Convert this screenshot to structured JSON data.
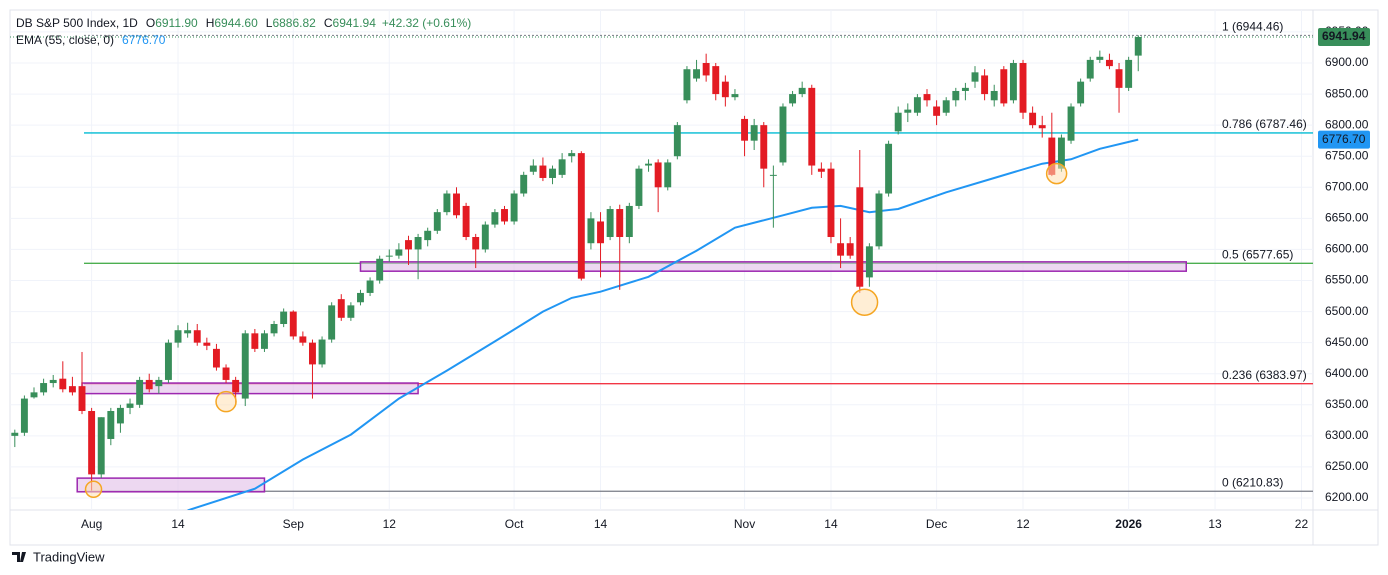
{
  "header": {
    "title": "DB S&P 500 Index, 1D",
    "ohlc": [
      {
        "label": "O",
        "value": "6911.90"
      },
      {
        "label": "H",
        "value": "6944.60"
      },
      {
        "label": "L",
        "value": "6886.82"
      },
      {
        "label": "C",
        "value": "6941.94"
      }
    ],
    "change": "+42.32 (+0.61%)",
    "close_label": "6941.94",
    "brand": "TradingView"
  },
  "chart_data": {
    "type": "candlestick",
    "up_color": "#388e5a",
    "down_color": "#e31b23",
    "xlim": [
      -0.5,
      135.2
    ],
    "ylim": [
      6180.7,
      6985.3
    ],
    "xticks": [
      {
        "value": 8,
        "label": "Aug"
      },
      {
        "value": 17,
        "label": "14"
      },
      {
        "value": 29,
        "label": "Sep"
      },
      {
        "value": 39,
        "label": "12"
      },
      {
        "value": 52,
        "label": "Oct"
      },
      {
        "value": 61,
        "label": "14"
      },
      {
        "value": 76,
        "label": "Nov"
      },
      {
        "value": 85,
        "label": "14"
      },
      {
        "value": 96,
        "label": "Dec"
      },
      {
        "value": 105,
        "label": "12"
      },
      {
        "value": 116,
        "label": "2026"
      },
      {
        "value": 125,
        "label": "13"
      },
      {
        "value": 134,
        "label": "22"
      }
    ],
    "yticks": [
      {
        "value": 6200,
        "label": "6200.00"
      },
      {
        "value": 6250,
        "label": "6250.00"
      },
      {
        "value": 6300,
        "label": "6300.00"
      },
      {
        "value": 6350,
        "label": "6350.00"
      },
      {
        "value": 6400,
        "label": "6400.00"
      },
      {
        "value": 6450,
        "label": "6450.00"
      },
      {
        "value": 6500,
        "label": "6500.00"
      },
      {
        "value": 6550,
        "label": "6550.00"
      },
      {
        "value": 6600,
        "label": "6600.00"
      },
      {
        "value": 6650,
        "label": "6650.00"
      },
      {
        "value": 6700,
        "label": "6700.00"
      },
      {
        "value": 6750,
        "label": "6750.00"
      },
      {
        "value": 6800,
        "label": "6800.00"
      },
      {
        "value": 6850,
        "label": "6850.00"
      },
      {
        "value": 6900,
        "label": "6900.00"
      },
      {
        "value": 6950,
        "label": "6950.00"
      }
    ],
    "open": [
      6300,
      6305,
      6362,
      6370,
      6385,
      6392,
      6380,
      6380,
      6340,
      6238,
      6295,
      6320,
      6345,
      6350,
      6390,
      6380,
      6390,
      6450,
      6465,
      6470,
      6450,
      6440,
      6410,
      6390,
      6360,
      6465,
      6440,
      6465,
      6480,
      6500,
      6460,
      6450,
      6415,
      6455,
      6520,
      6490,
      6515,
      6530,
      6550,
      6590,
      6590,
      6615,
      6600,
      6615,
      6630,
      6660,
      6690,
      6670,
      6620,
      6600,
      6640,
      6665,
      6645,
      6690,
      6725,
      6735,
      6715,
      6720,
      6750,
      6755,
      6610,
      6645,
      6620,
      6665,
      6620,
      6670,
      6735,
      6740,
      6700,
      6750,
      6840,
      6875,
      6900,
      6895,
      6870,
      6845,
      6810,
      6775,
      6800,
      6720,
      6740,
      6835,
      6850,
      6860,
      6730,
      6730,
      6610,
      6610,
      6700,
      6555,
      6605,
      6690,
      6790,
      6820,
      6820,
      6850,
      6830,
      6820,
      6840,
      6855,
      6870,
      6880,
      6840,
      6890,
      6840,
      6900,
      6820,
      6800,
      6780,
      6730,
      6775,
      6835,
      6875,
      6905,
      6905,
      6890,
      6860,
      6911.9
    ],
    "high": [
      6310,
      6365,
      6378,
      6392,
      6398,
      6420,
      6395,
      6435,
      6345,
      6330,
      6345,
      6350,
      6360,
      6395,
      6400,
      6395,
      6455,
      6478,
      6482,
      6480,
      6458,
      6448,
      6415,
      6395,
      6470,
      6472,
      6470,
      6485,
      6505,
      6502,
      6468,
      6455,
      6460,
      6515,
      6528,
      6515,
      6535,
      6555,
      6590,
      6600,
      6610,
      6622,
      6625,
      6635,
      6665,
      6695,
      6700,
      6675,
      6625,
      6645,
      6665,
      6670,
      6695,
      6725,
      6745,
      6748,
      6735,
      6755,
      6760,
      6758,
      6660,
      6660,
      6670,
      6672,
      6675,
      6735,
      6745,
      6745,
      6745,
      6805,
      6895,
      6905,
      6915,
      6900,
      6880,
      6858,
      6815,
      6810,
      6805,
      6735,
      6835,
      6855,
      6870,
      6865,
      6740,
      6740,
      6650,
      6620,
      6760,
      6610,
      6695,
      6775,
      6830,
      6835,
      6850,
      6858,
      6840,
      6845,
      6860,
      6868,
      6895,
      6890,
      6865,
      6895,
      6905,
      6905,
      6830,
      6815,
      6820,
      6785,
      6835,
      6875,
      6910,
      6920,
      6915,
      6900,
      6910,
      6944.6
    ],
    "low": [
      6282,
      6300,
      6360,
      6365,
      6378,
      6370,
      6365,
      6335,
      6212,
      6232,
      6285,
      6305,
      6335,
      6345,
      6370,
      6368,
      6385,
      6442,
      6458,
      6445,
      6438,
      6405,
      6385,
      6350,
      6348,
      6435,
      6435,
      6460,
      6475,
      6455,
      6445,
      6360,
      6410,
      6450,
      6485,
      6485,
      6510,
      6525,
      6545,
      6580,
      6585,
      6575,
      6552,
      6605,
      6625,
      6655,
      6650,
      6615,
      6570,
      6595,
      6635,
      6640,
      6640,
      6685,
      6720,
      6710,
      6705,
      6715,
      6740,
      6550,
      6600,
      6555,
      6615,
      6535,
      6610,
      6665,
      6725,
      6660,
      6695,
      6745,
      6835,
      6870,
      6870,
      6840,
      6830,
      6840,
      6750,
      6760,
      6700,
      6635,
      6735,
      6830,
      6845,
      6720,
      6715,
      6610,
      6570,
      6585,
      6530,
      6540,
      6600,
      6685,
      6785,
      6805,
      6815,
      6830,
      6800,
      6815,
      6830,
      6840,
      6860,
      6840,
      6830,
      6830,
      6835,
      6810,
      6795,
      6780,
      6718,
      6725,
      6770,
      6830,
      6870,
      6900,
      6890,
      6820,
      6855,
      6886.82
    ],
    "close": [
      6305,
      6360,
      6370,
      6385,
      6390,
      6375,
      6370,
      6340,
      6238,
      6330,
      6340,
      6345,
      6352,
      6390,
      6375,
      6390,
      6450,
      6470,
      6470,
      6450,
      6445,
      6410,
      6390,
      6370,
      6465,
      6440,
      6465,
      6480,
      6500,
      6460,
      6450,
      6415,
      6455,
      6510,
      6490,
      6510,
      6530,
      6550,
      6585,
      6590,
      6600,
      6600,
      6620,
      6630,
      6660,
      6690,
      6655,
      6620,
      6600,
      6640,
      6660,
      6645,
      6690,
      6720,
      6735,
      6715,
      6730,
      6745,
      6755,
      6553,
      6650,
      6610,
      6665,
      6620,
      6670,
      6730,
      6738,
      6700,
      6740,
      6800,
      6890,
      6890,
      6880,
      6850,
      6845,
      6850,
      6775,
      6800,
      6730,
      6720,
      6830,
      6850,
      6860,
      6735,
      6725,
      6620,
      6590,
      6590,
      6540,
      6605,
      6690,
      6770,
      6820,
      6825,
      6845,
      6840,
      6815,
      6840,
      6855,
      6860,
      6885,
      6850,
      6855,
      6835,
      6900,
      6820,
      6800,
      6795,
      6720,
      6780,
      6830,
      6870,
      6905,
      6910,
      6895,
      6860,
      6905,
      6941.94
    ],
    "ema": {
      "label": "EMA (55, close, 0)",
      "last_label": "6776.70",
      "color": "#2196f3",
      "x": [
        18,
        25,
        30,
        35,
        40,
        45,
        50,
        55,
        58,
        61,
        66,
        71,
        75,
        80,
        83,
        86,
        89,
        92,
        97,
        102,
        107,
        110,
        113,
        117
      ],
      "values": [
        6180,
        6215,
        6262,
        6302,
        6360,
        6405,
        6452,
        6500,
        6522,
        6532,
        6556,
        6598,
        6635,
        6655,
        6667,
        6670,
        6660,
        6665,
        6692,
        6715,
        6738,
        6745,
        6762,
        6776.7
      ]
    },
    "levels": [
      {
        "label": "1 (6944.46)",
        "value": 6944.46,
        "color": "#787b86",
        "dash": true
      },
      {
        "label": "0.786 (6787.46)",
        "value": 6787.46,
        "color": "#00bcd4",
        "dash": false
      },
      {
        "label": "0.5 (6577.65)",
        "value": 6577.65,
        "color": "#4caf50",
        "dash": false
      },
      {
        "label": "0.236 (6383.97)",
        "value": 6383.97,
        "color": "#f23645",
        "dash": false
      },
      {
        "label": "0 (6210.83)",
        "value": 6210.83,
        "color": "#787b86",
        "dash": false
      }
    ],
    "zones": [
      {
        "x": [
          7,
          42
        ],
        "y": [
          6368,
          6385
        ]
      },
      {
        "x": [
          6.5,
          26
        ],
        "y": [
          6210,
          6232
        ]
      },
      {
        "x": [
          36,
          122
        ],
        "y": [
          6565,
          6580
        ]
      }
    ],
    "circles": [
      {
        "x": 8.2,
        "y": 6214,
        "r": 8
      },
      {
        "x": 22,
        "y": 6355,
        "r": 10
      },
      {
        "x": 88.5,
        "y": 6515,
        "r": 13
      },
      {
        "x": 108.5,
        "y": 6722,
        "r": 10
      }
    ]
  }
}
